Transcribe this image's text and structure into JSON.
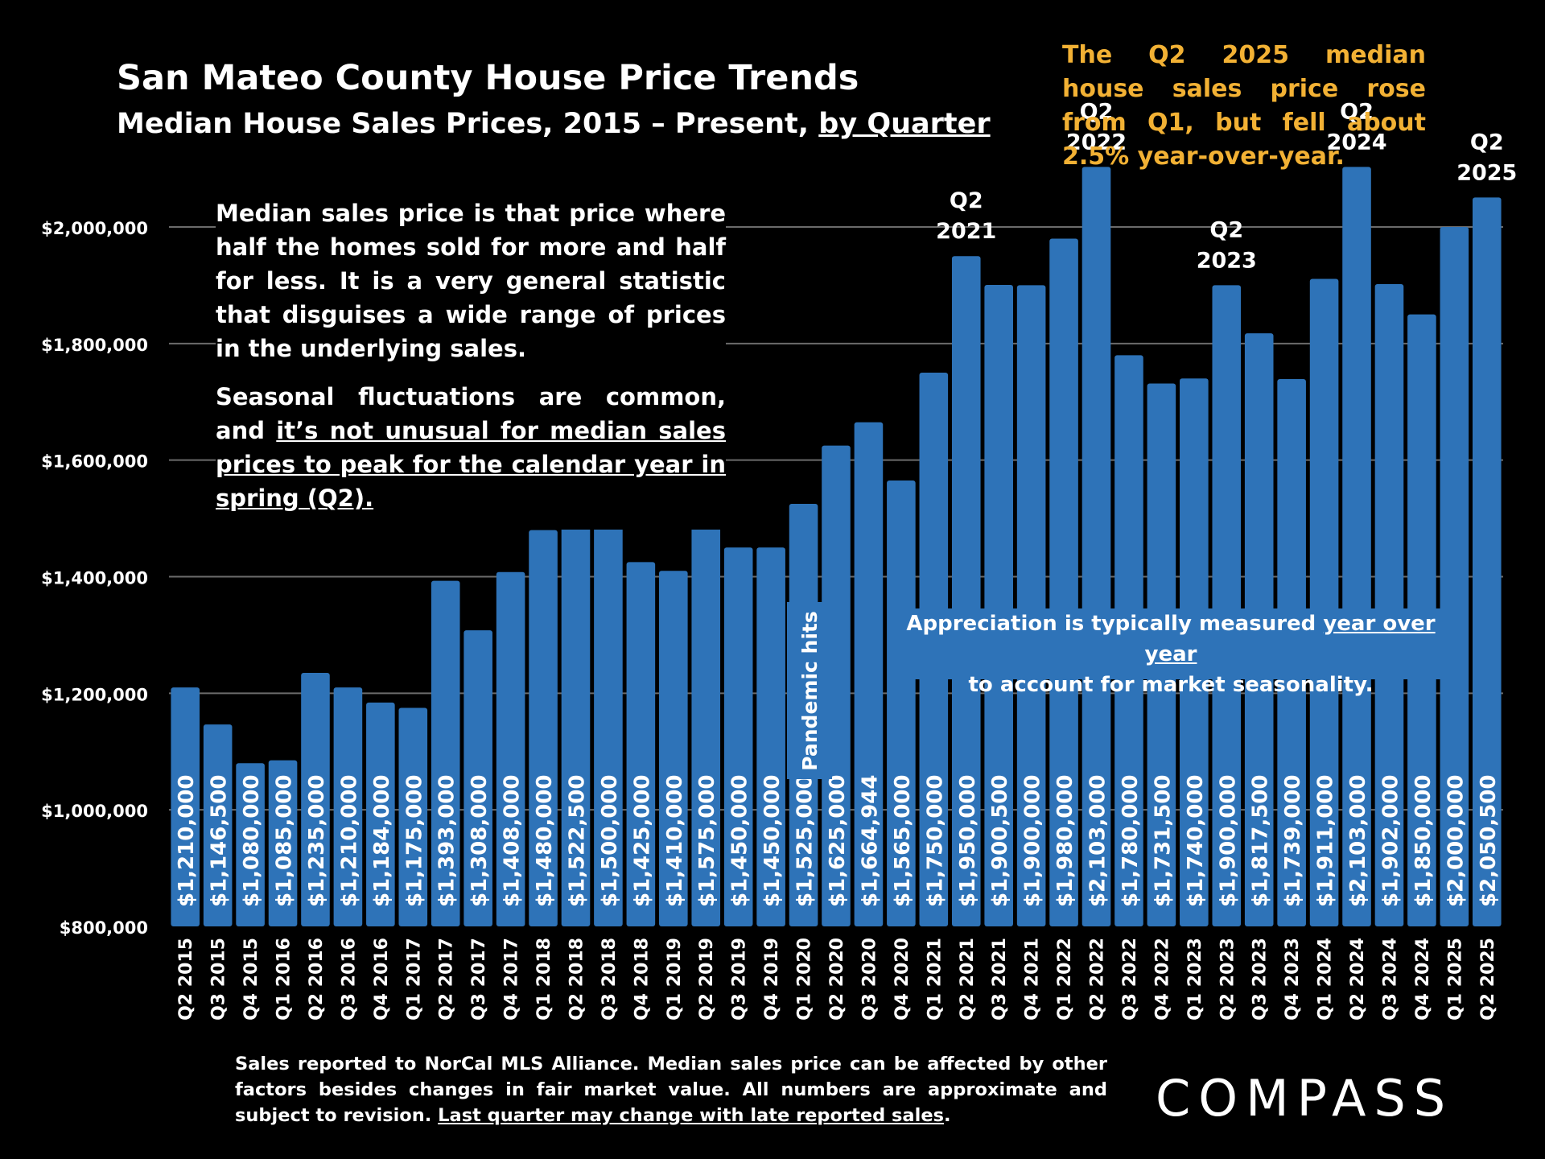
{
  "header": {
    "title": "San Mateo County House Price Trends",
    "subtitle_prefix": "Median House Sales Prices, 2015 – Present, ",
    "subtitle_link": "by Quarter"
  },
  "callout": "The Q2 2025 median house sales price rose from Q1, but fell about 2.5% year-over-year.",
  "note": {
    "p1": "Median sales price is that price where half the homes sold for more and half for less. It is a very general statistic that disguises a wide range of prices in the underlying sales.",
    "p2_prefix": "Seasonal fluctuations are common, and ",
    "p2_underlined": "it’s not unusual for median sales prices to peak for the calendar year in spring (Q2)."
  },
  "pandemic_label": "Pandemic hits",
  "appreciation": {
    "prefix": "Appreciation is typically measured ",
    "underlined": "year over year",
    "suffix": "to account for market seasonality."
  },
  "footer": {
    "text": "Sales reported to NorCal MLS Alliance. Median sales price can be affected by other factors besides changes in fair market value. All numbers are approximate and subject to revision. ",
    "underlined": "Last quarter may change with late reported sales",
    "end": "."
  },
  "logo": "COMPASS",
  "colors": {
    "bar": "#2e73b8",
    "callout": "#f2b134",
    "background": "#000000"
  },
  "chart_data": {
    "type": "bar",
    "ylim": [
      800000,
      2150000
    ],
    "y_ticks": [
      {
        "value": 800000,
        "label": "$800,000"
      },
      {
        "value": 1000000,
        "label": "$1,000,000"
      },
      {
        "value": 1200000,
        "label": "$1,200,000"
      },
      {
        "value": 1400000,
        "label": "$1,400,000"
      },
      {
        "value": 1600000,
        "label": "$1,600,000"
      },
      {
        "value": 1800000,
        "label": "$1,800,000"
      },
      {
        "value": 2000000,
        "label": "$2,000,000"
      }
    ],
    "grid": true,
    "categories": [
      "Q2 2015",
      "Q3 2015",
      "Q4 2015",
      "Q1 2016",
      "Q2 2016",
      "Q3 2016",
      "Q4 2016",
      "Q1 2017",
      "Q2 2017",
      "Q3 2017",
      "Q4 2017",
      "Q1 2018",
      "Q2 2018",
      "Q3 2018",
      "Q4 2018",
      "Q1 2019",
      "Q2 2019",
      "Q3 2019",
      "Q4 2019",
      "Q1 2020",
      "Q2 2020",
      "Q3 2020",
      "Q4 2020",
      "Q1 2021",
      "Q2 2021",
      "Q3 2021",
      "Q4 2021",
      "Q1 2022",
      "Q2 2022",
      "Q3 2022",
      "Q4 2022",
      "Q1 2023",
      "Q2 2023",
      "Q3 2023",
      "Q4 2023",
      "Q1 2024",
      "Q2 2024",
      "Q3 2024",
      "Q4 2024",
      "Q1 2025",
      "Q2 2025"
    ],
    "values": [
      1210000,
      1146500,
      1080000,
      1085000,
      1235000,
      1210000,
      1184000,
      1175000,
      1393000,
      1308000,
      1408000,
      1480000,
      1522500,
      1500000,
      1425000,
      1410000,
      1575000,
      1450000,
      1450000,
      1525000,
      1625000,
      1664944,
      1565000,
      1750000,
      1950000,
      1900500,
      1900000,
      1980000,
      2103000,
      1780000,
      1731500,
      1740000,
      1900000,
      1817500,
      1739000,
      1911000,
      2103000,
      1902000,
      1850000,
      2000000,
      2050500
    ],
    "data_labels": [
      "$1,210,000",
      "$1,146,500",
      "$1,080,000",
      "$1,085,000",
      "$1,235,000",
      "$1,210,000",
      "$1,184,000",
      "$1,175,000",
      "$1,393,000",
      "$1,308,000",
      "$1,408,000",
      "$1,480,000",
      "$1,522,500",
      "$1,500,000",
      "$1,425,000",
      "$1,410,000",
      "$1,575,000",
      "$1,450,000",
      "$1,450,000",
      "$1,525,000",
      "$1,625,000",
      "$1,664,944",
      "$1,565,000",
      "$1,750,000",
      "$1,950,000",
      "$1,900,500",
      "$1,900,000",
      "$1,980,000",
      "$2,103,000",
      "$1,780,000",
      "$1,731,500",
      "$1,740,000",
      "$1,900,000",
      "$1,817,500",
      "$1,739,000",
      "$1,911,000",
      "$2,103,000",
      "$1,902,000",
      "$1,850,000",
      "$2,000,000",
      "$2,050,500"
    ],
    "annotations": [
      {
        "category": "Q2 2021",
        "lines": [
          "Q2",
          "2021"
        ]
      },
      {
        "category": "Q2 2022",
        "lines": [
          "Q2",
          "2022"
        ]
      },
      {
        "category": "Q2 2023",
        "lines": [
          "Q2",
          "2023"
        ]
      },
      {
        "category": "Q2 2024",
        "lines": [
          "Q2",
          "2024"
        ]
      },
      {
        "category": "Q2 2025",
        "lines": [
          "Q2",
          "2025"
        ]
      }
    ]
  }
}
